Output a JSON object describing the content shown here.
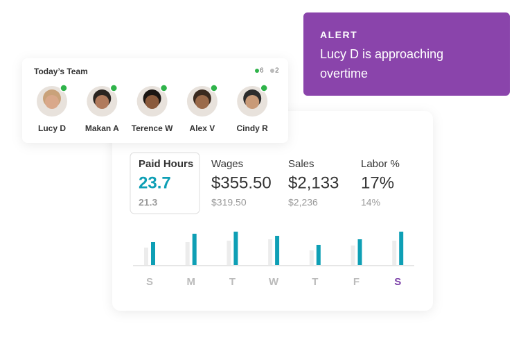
{
  "alert": {
    "title": "ALERT",
    "message": "Lucy D is approaching overtime"
  },
  "team": {
    "title": "Today’s Team",
    "online": 6,
    "offline": 2,
    "members": [
      {
        "name": "Lucy D"
      },
      {
        "name": "Makan A"
      },
      {
        "name": "Terence W"
      },
      {
        "name": "Alex V"
      },
      {
        "name": "Cindy R"
      }
    ]
  },
  "stats": [
    {
      "label": "Paid Hours",
      "value": "23.7",
      "previous": "21.3"
    },
    {
      "label": "Wages",
      "value": "$355.50",
      "previous": "$319.50"
    },
    {
      "label": "Sales",
      "value": "$2,133",
      "previous": "$2,236"
    },
    {
      "label": "Labor %",
      "value": "17%",
      "previous": "14%"
    }
  ],
  "chart_data": {
    "type": "bar",
    "categories": [
      "S",
      "M",
      "T",
      "W",
      "T",
      "F",
      "S"
    ],
    "series": [
      {
        "color": "#ececec",
        "values": [
          25,
          33,
          35,
          37,
          21,
          28,
          35
        ]
      },
      {
        "color": "#0e9fb5",
        "values": [
          33,
          45,
          48,
          42,
          29,
          37,
          48
        ]
      }
    ],
    "highlight_index": 6,
    "highlight_color": "#7b3fa8"
  }
}
